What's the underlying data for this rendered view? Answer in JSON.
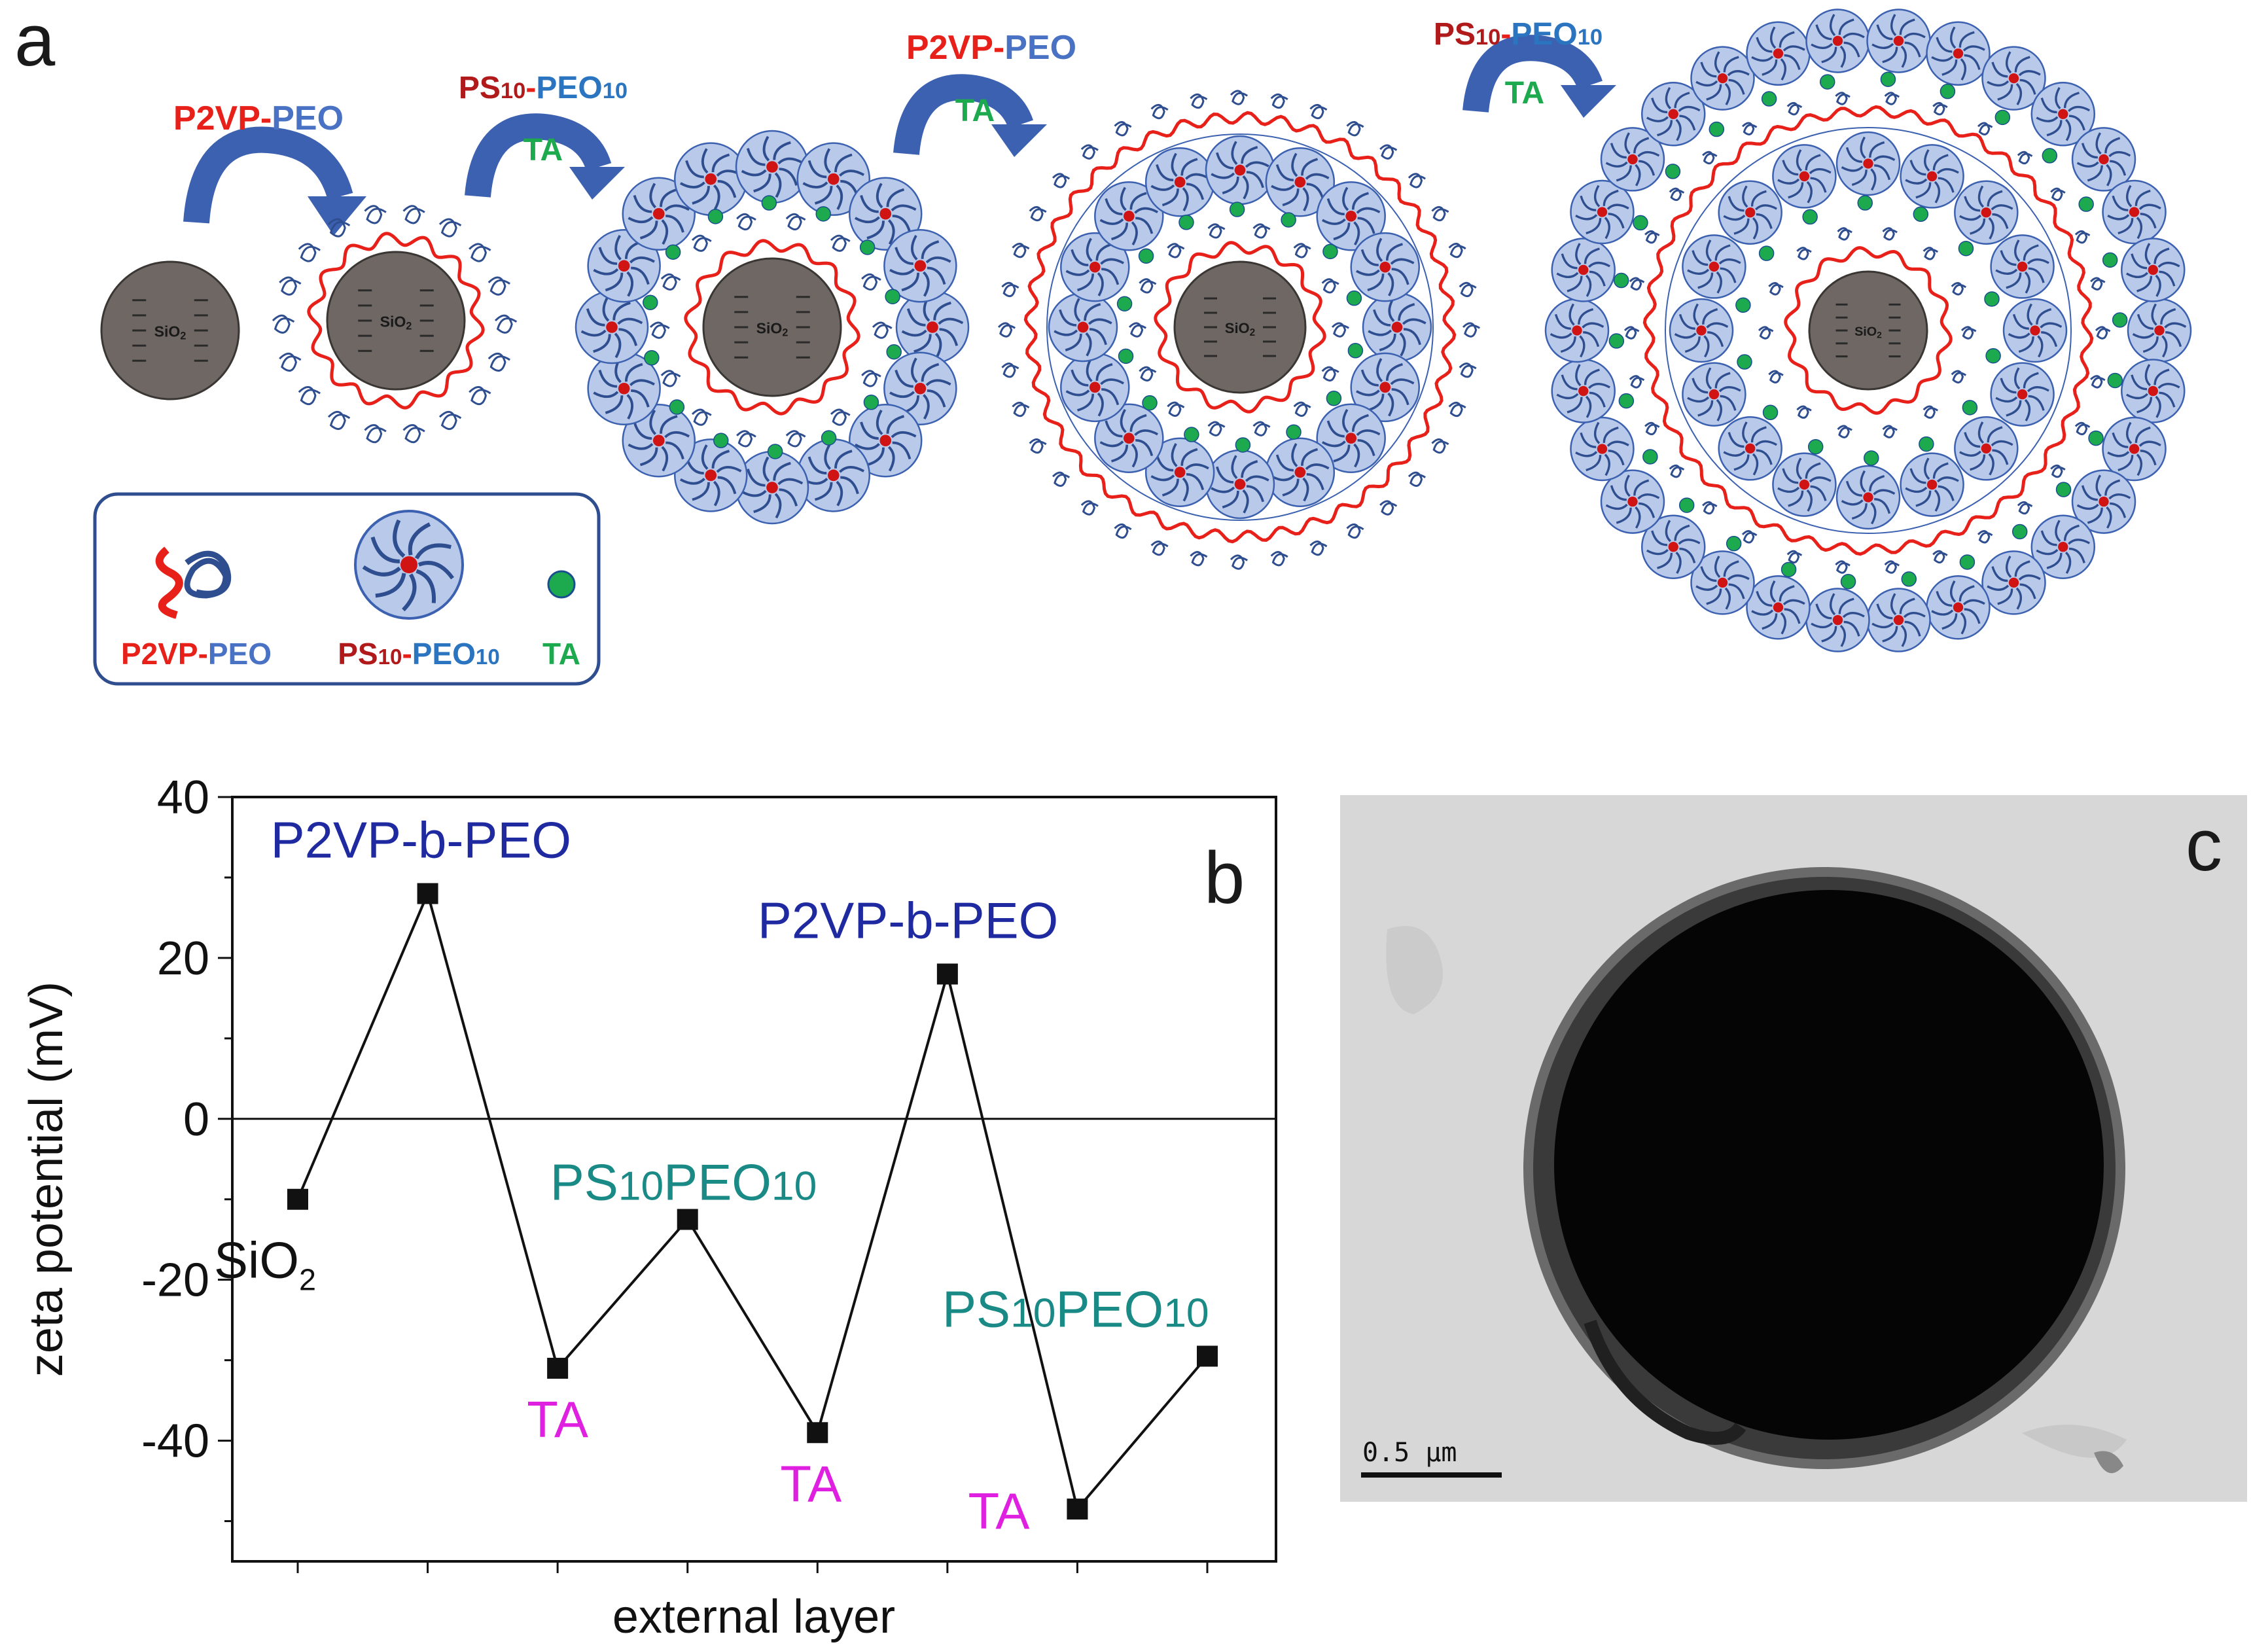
{
  "panel_labels": {
    "a": "a",
    "b": "b",
    "c": "c"
  },
  "scheme": {
    "core_label": "SiO2",
    "steps": [
      {
        "top": "P2VP-PEO",
        "bottom": ""
      },
      {
        "top": "PS10-PEO10",
        "bottom": "TA"
      },
      {
        "top": "P2VP-PEO",
        "bottom": "TA"
      },
      {
        "top": "PS10-PEO10",
        "bottom": "TA"
      }
    ],
    "legend": [
      {
        "label": "P2VP-PEO",
        "icon": "p2vp-peo-coil-icon"
      },
      {
        "label": "PS10-PEO10",
        "icon": "micelle-icon"
      },
      {
        "label": "TA",
        "icon": "ta-dot-icon"
      }
    ],
    "colors": {
      "red": "#e8201a",
      "blue": "#4a72c4",
      "green": "#1daa4f",
      "darkred": "#b01a1a",
      "core": "#6e6763"
    }
  },
  "chart_data": {
    "type": "line",
    "xlabel": "external layer",
    "ylabel": "zeta potential (mV)",
    "ylim": [
      -55,
      40
    ],
    "yticks": [
      40,
      20,
      0,
      -20,
      -40
    ],
    "x": [
      1,
      2,
      3,
      4,
      5,
      6,
      7,
      8
    ],
    "values": [
      -10,
      28,
      -31,
      -12.5,
      -39,
      18,
      -48.5,
      -29.5
    ],
    "annotations": [
      {
        "text": "SiO2",
        "point": 0,
        "color": "#111111"
      },
      {
        "text": "P2VP-b-PEO",
        "point": 1,
        "color": "#1f2aa0"
      },
      {
        "text": "TA",
        "point": 2,
        "color": "#e020e0"
      },
      {
        "text": "PS10PEO10",
        "point": 3,
        "color": "#1a8a86"
      },
      {
        "text": "TA",
        "point": 4,
        "color": "#e020e0"
      },
      {
        "text": "P2VP-b-PEO",
        "point": 5,
        "color": "#1f2aa0"
      },
      {
        "text": "TA",
        "point": 6,
        "color": "#e020e0"
      },
      {
        "text": "PS10PEO10",
        "point": 7,
        "color": "#1a8a86"
      }
    ]
  },
  "micrograph": {
    "scale_bar": "0.5 µm"
  }
}
